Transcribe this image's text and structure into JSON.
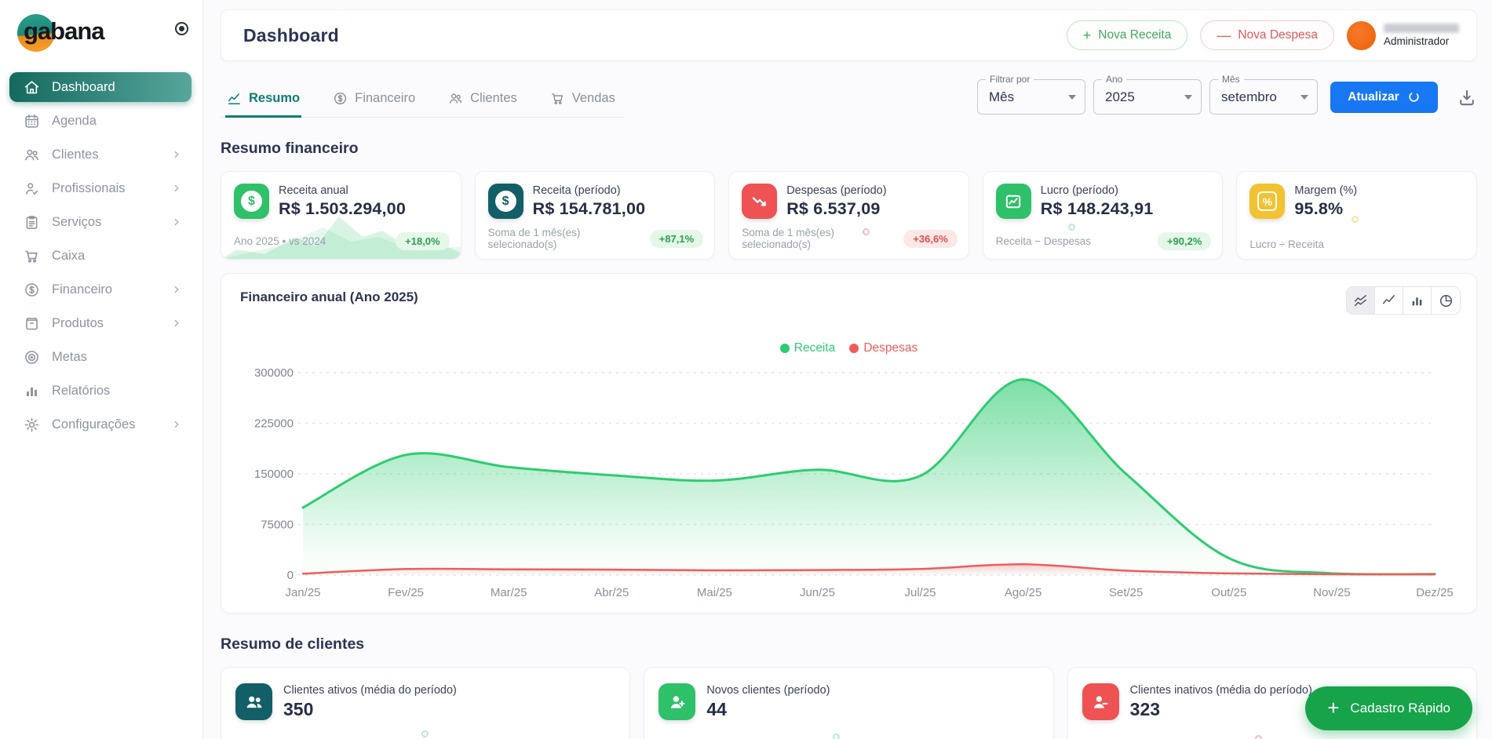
{
  "colors": {
    "primary": "#0e7a6f",
    "primary-grad-a": "#14695f",
    "primary-grad-b": "#57a69c",
    "green": "#2ecc71",
    "red": "#ee5253",
    "blue": "#1877f2",
    "yellow": "#f1c232",
    "teal-dark": "#135f68",
    "orange": "#ee5f07",
    "fab-green": "#16a34a",
    "text-dark": "#2b3452",
    "text-muted": "#98a0ad"
  },
  "app": {
    "logo_text": "gabana"
  },
  "sidebar": {
    "items": [
      {
        "label": "Dashboard",
        "icon": "home-icon",
        "active": true,
        "chevron": false
      },
      {
        "label": "Agenda",
        "icon": "calendar-icon",
        "active": false,
        "chevron": false
      },
      {
        "label": "Clientes",
        "icon": "people-icon",
        "active": false,
        "chevron": true
      },
      {
        "label": "Profissionais",
        "icon": "person-check-icon",
        "active": false,
        "chevron": true
      },
      {
        "label": "Serviços",
        "icon": "clipboard-icon",
        "active": false,
        "chevron": true
      },
      {
        "label": "Caixa",
        "icon": "cart-icon",
        "active": false,
        "chevron": false
      },
      {
        "label": "Financeiro",
        "icon": "dollar-circle-icon",
        "active": false,
        "chevron": true
      },
      {
        "label": "Produtos",
        "icon": "box-icon",
        "active": false,
        "chevron": true
      },
      {
        "label": "Metas",
        "icon": "target-icon",
        "active": false,
        "chevron": false
      },
      {
        "label": "Relatórios",
        "icon": "bar-chart-icon",
        "active": false,
        "chevron": false
      },
      {
        "label": "Configurações",
        "icon": "gear-icon",
        "active": false,
        "chevron": true
      }
    ]
  },
  "header": {
    "title": "Dashboard",
    "new_income_label": "Nova Receita",
    "new_expense_label": "Nova Despesa",
    "plus_sign": "+",
    "minus_sign": "—",
    "user_role": "Administrador"
  },
  "tabs": [
    {
      "label": "Resumo",
      "icon": "line-chart-icon",
      "active": true
    },
    {
      "label": "Financeiro",
      "icon": "dollar-circle-icon",
      "active": false
    },
    {
      "label": "Clientes",
      "icon": "people-icon",
      "active": false
    },
    {
      "label": "Vendas",
      "icon": "cart-icon",
      "active": false
    }
  ],
  "filters": {
    "filter_by_label": "Filtrar por",
    "filter_by_value": "Mês",
    "year_label": "Ano",
    "year_value": "2025",
    "month_label": "Mês",
    "month_value": "setembro",
    "update_label": "Atualizar"
  },
  "finance_section": {
    "title": "Resumo financeiro",
    "cards": [
      {
        "icon": "dollar-icon",
        "accent": "#2fc06a",
        "title": "Receita anual",
        "value": "R$ 1.503.294,00",
        "subtitle": "Ano 2025 • vs 2024",
        "badge": "+18,0%",
        "badge_tone": "green"
      },
      {
        "icon": "dollar-icon",
        "accent": "#135f68",
        "title": "Receita (período)",
        "value": "R$ 154.781,00",
        "subtitle": "Soma de 1 mês(es) selecionado(s)",
        "badge": "+87,1%",
        "badge_tone": "green"
      },
      {
        "icon": "trend-down-icon",
        "accent": "#ee5253",
        "title": "Despesas (período)",
        "value": "R$ 6.537,09",
        "subtitle": "Soma de 1 mês(es) selecionado(s)",
        "badge": "+36,6%",
        "badge_tone": "red"
      },
      {
        "icon": "chart-frame-icon",
        "accent": "#2fc06a",
        "title": "Lucro (período)",
        "value": "R$ 148.243,91",
        "subtitle": "Receita − Despesas",
        "badge": "+90,2%",
        "badge_tone": "green"
      },
      {
        "icon": "percent-icon",
        "accent": "#f1c232",
        "title": "Margem (%)",
        "value": "95.8%",
        "subtitle": "Lucro ÷ Receita",
        "badge": "",
        "badge_tone": ""
      }
    ]
  },
  "chart_card": {
    "title": "Financeiro anual (Ano 2025)"
  },
  "chart_data": {
    "type": "area",
    "title": "Financeiro anual (Ano 2025)",
    "x": [
      "Jan/25",
      "Fev/25",
      "Mar/25",
      "Abr/25",
      "Mai/25",
      "Jun/25",
      "Jul/25",
      "Ago/25",
      "Set/25",
      "Out/25",
      "Nov/25",
      "Dez/25"
    ],
    "y_ticks": [
      0,
      75000,
      150000,
      225000,
      300000
    ],
    "ylim": [
      0,
      300000
    ],
    "grid": true,
    "legend_position": "top-center",
    "series": [
      {
        "name": "Receita",
        "color": "#2ecc71",
        "values": [
          100000,
          178000,
          160000,
          148000,
          140000,
          156000,
          147000,
          290000,
          150000,
          25000,
          2500,
          1500
        ]
      },
      {
        "name": "Despesas",
        "color": "#f05c5c",
        "values": [
          2000,
          9000,
          8500,
          8000,
          7000,
          7500,
          9000,
          16000,
          6500,
          2500,
          1200,
          1000
        ]
      }
    ]
  },
  "clients_section": {
    "title": "Resumo de clientes",
    "cards": [
      {
        "icon": "people-duo-icon",
        "accent": "#135f68",
        "title": "Clientes ativos (média do período)",
        "value": "350"
      },
      {
        "icon": "person-plus-icon",
        "accent": "#2fc06a",
        "title": "Novos clientes (período)",
        "value": "44"
      },
      {
        "icon": "person-minus-icon",
        "accent": "#ee5253",
        "title": "Clientes inativos (média do período)",
        "value": "323"
      }
    ]
  },
  "fab": {
    "label": "Cadastro Rápido",
    "plus_sign": "+"
  }
}
